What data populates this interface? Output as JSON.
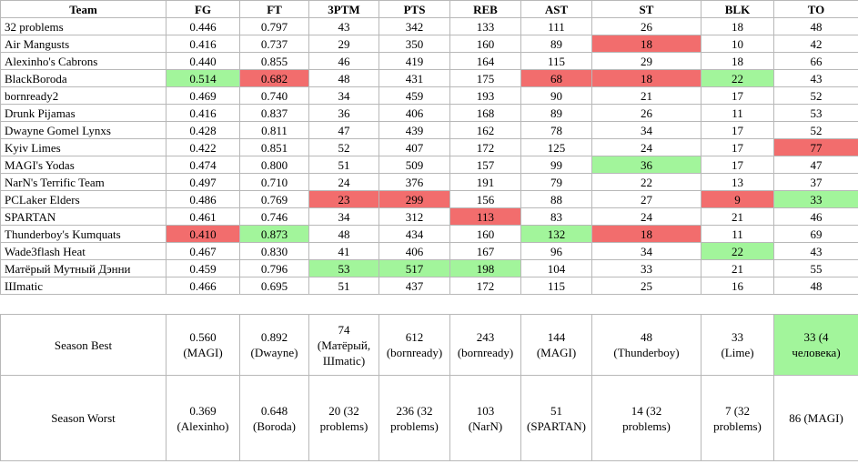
{
  "table": {
    "header": [
      "Team",
      "FG",
      "FT",
      "3PTM",
      "PTS",
      "REB",
      "AST",
      "ST",
      "BLK",
      "TO"
    ],
    "rows": [
      [
        "32 problems",
        "0.446",
        "0.797",
        "43",
        "342",
        "133",
        "111",
        "26",
        "18",
        "48"
      ],
      [
        "Air Mangusts",
        "0.416",
        "0.737",
        "29",
        "350",
        "160",
        "89",
        {
          "text": "18",
          "color": "red"
        },
        "10",
        "42"
      ],
      [
        "Alexinho's Cabrons",
        "0.440",
        "0.855",
        "46",
        "419",
        "164",
        "115",
        "29",
        "18",
        "66"
      ],
      [
        "BlackBoroda",
        {
          "text": "0.514",
          "color": "green"
        },
        {
          "text": "0.682",
          "color": "red"
        },
        "48",
        "431",
        "175",
        {
          "text": "68",
          "color": "red"
        },
        {
          "text": "18",
          "color": "red"
        },
        {
          "text": "22",
          "color": "green"
        },
        "43"
      ],
      [
        "bornready2",
        "0.469",
        "0.740",
        "34",
        "459",
        "193",
        "90",
        "21",
        "17",
        "52"
      ],
      [
        "Drunk Pijamas",
        "0.416",
        "0.837",
        "36",
        "406",
        "168",
        "89",
        "26",
        "11",
        "53"
      ],
      [
        "Dwayne Gomel Lynxs",
        "0.428",
        "0.811",
        "47",
        "439",
        "162",
        "78",
        "34",
        "17",
        "52"
      ],
      [
        "Kyiv Limes",
        "0.422",
        "0.851",
        "52",
        "407",
        "172",
        "125",
        "24",
        "17",
        {
          "text": "77",
          "color": "red"
        }
      ],
      [
        "MAGI's Yodas",
        "0.474",
        "0.800",
        "51",
        "509",
        "157",
        "99",
        {
          "text": "36",
          "color": "green"
        },
        "17",
        "47"
      ],
      [
        "NarN's Terrific Team",
        "0.497",
        "0.710",
        "24",
        "376",
        "191",
        "79",
        "22",
        "13",
        "37"
      ],
      [
        "PCLaker Elders",
        "0.486",
        "0.769",
        {
          "text": "23",
          "color": "red"
        },
        {
          "text": "299",
          "color": "red"
        },
        "156",
        "88",
        "27",
        {
          "text": "9",
          "color": "red"
        },
        {
          "text": "33",
          "color": "green"
        }
      ],
      [
        "SPARTAN",
        "0.461",
        "0.746",
        "34",
        "312",
        {
          "text": "113",
          "color": "red"
        },
        "83",
        "24",
        "21",
        "46"
      ],
      [
        "Thunderboy's Kumquats",
        {
          "text": "0.410",
          "color": "red"
        },
        {
          "text": "0.873",
          "color": "green"
        },
        "48",
        "434",
        "160",
        {
          "text": "132",
          "color": "green"
        },
        {
          "text": "18",
          "color": "red"
        },
        "11",
        "69"
      ],
      [
        "Wade3flash Heat",
        "0.467",
        "0.830",
        "41",
        "406",
        "167",
        "96",
        "34",
        {
          "text": "22",
          "color": "green"
        },
        "43"
      ],
      [
        "Матёрый Мутный Дэнни",
        "0.459",
        "0.796",
        {
          "text": "53",
          "color": "green"
        },
        {
          "text": "517",
          "color": "green"
        },
        {
          "text": "198",
          "color": "green"
        },
        "104",
        "33",
        "21",
        "55"
      ],
      [
        "Шmatic",
        "0.466",
        "0.695",
        "51",
        "437",
        "172",
        "115",
        "25",
        "16",
        "48"
      ]
    ],
    "summary": [
      [
        "Season Best",
        "0.560\n(MAGI)",
        "0.892\n(Dwayne)",
        "74\n(Матёрый,\nШmatic)",
        "612\n(bornready)",
        "243\n(bornready)",
        "144\n(MAGI)",
        "48\n(Thunderboy)",
        "33\n(Lime)",
        {
          "text": "33 (4\nчеловека)",
          "color": "green"
        }
      ],
      [
        "Season Worst",
        "0.369\n(Alexinho)",
        "0.648\n(Boroda)",
        "20 (32\nproblems)",
        "236 (32\nproblems)",
        "103\n(NarN)",
        "51\n(SPARTAN)",
        "14 (32\nproblems)",
        "7 (32\nproblems)",
        "86 (MAGI)"
      ]
    ]
  }
}
